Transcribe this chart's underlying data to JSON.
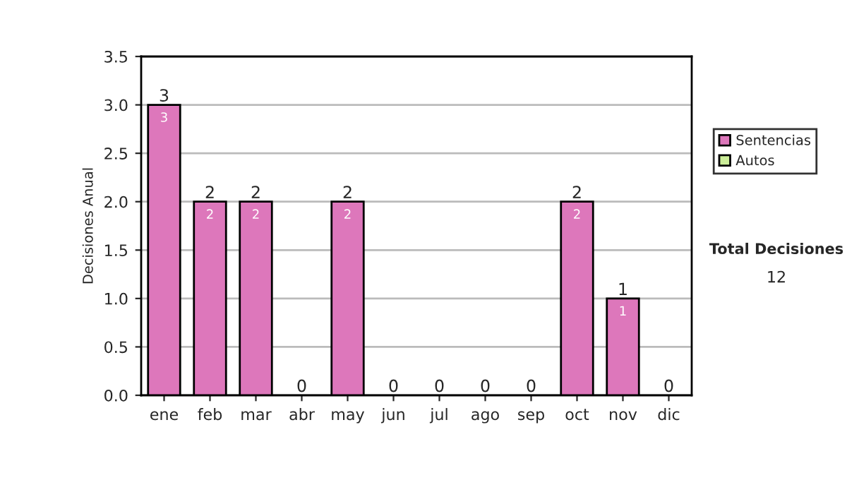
{
  "chart_data": {
    "type": "bar",
    "stacked": true,
    "ylabel": "Decisiones Anual",
    "categories": [
      "ene",
      "feb",
      "mar",
      "abr",
      "may",
      "jun",
      "jul",
      "ago",
      "sep",
      "oct",
      "nov",
      "dic"
    ],
    "series": [
      {
        "name": "Sentencias",
        "color": "#dd77bb",
        "values": [
          3,
          2,
          2,
          0,
          2,
          0,
          0,
          0,
          0,
          2,
          1,
          0
        ],
        "value_labels": [
          "3",
          "2",
          "2",
          null,
          "2",
          null,
          null,
          null,
          null,
          "2",
          "1",
          null
        ]
      },
      {
        "name": "Autos",
        "color": "#ccee99",
        "values": [
          0,
          0,
          0,
          0,
          0,
          0,
          0,
          0,
          0,
          0,
          0,
          0
        ]
      }
    ],
    "totals": [
      "3",
      "2",
      "2",
      "0",
      "2",
      "0",
      "0",
      "0",
      "0",
      "2",
      "1",
      "0"
    ],
    "ylim": [
      0,
      3.5
    ],
    "yticks": [
      {
        "value": 0,
        "label": "0.0"
      },
      {
        "value": 0.5,
        "label": "0.5"
      },
      {
        "value": 1,
        "label": "1.0"
      },
      {
        "value": 1.5,
        "label": "1.5"
      },
      {
        "value": 2,
        "label": "2.0"
      },
      {
        "value": 2.5,
        "label": "2.5"
      },
      {
        "value": 3,
        "label": "3.0"
      },
      {
        "value": 3.5,
        "label": "3.5"
      }
    ],
    "grid": "y",
    "legend": "right",
    "annotations": [
      "Total Decisiones",
      "12"
    ]
  }
}
